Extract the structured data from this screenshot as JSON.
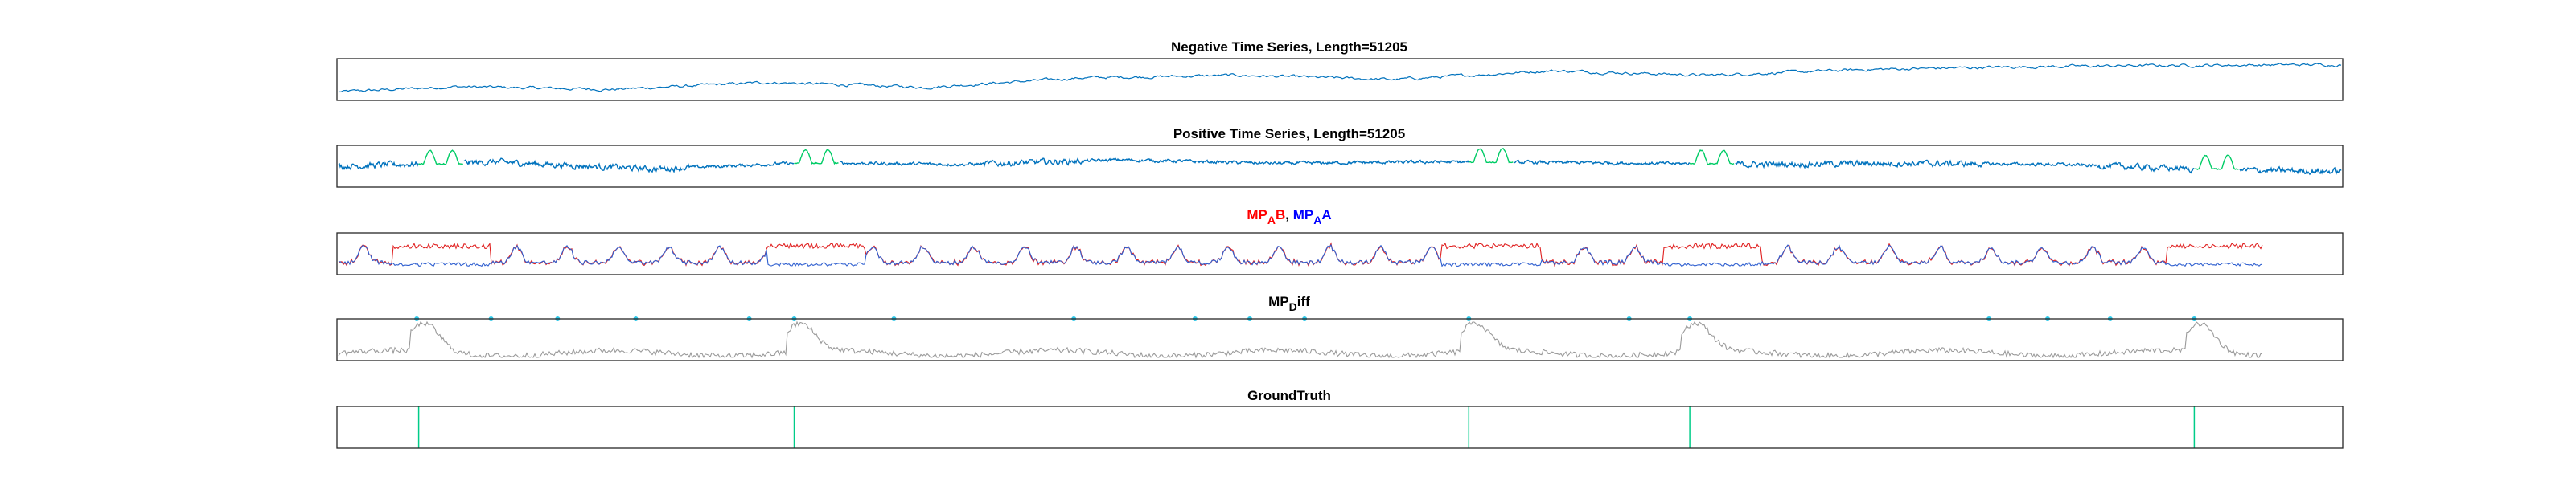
{
  "chart_data": [
    {
      "type": "line",
      "title": "Negative Time Series, Length=51205",
      "x_range": [
        1,
        51205
      ],
      "series": [
        {
          "color": "#0072bd",
          "x": [
            1,
            3000,
            7000,
            11000,
            15000,
            19000,
            23000,
            27000,
            31000,
            35000,
            39000,
            43000,
            47000,
            51205
          ],
          "values": [
            0.15,
            0.3,
            0.22,
            0.42,
            0.28,
            0.55,
            0.62,
            0.5,
            0.75,
            0.62,
            0.78,
            0.86,
            0.9,
            0.92
          ]
        }
      ]
    },
    {
      "type": "line",
      "title": "Positive Time Series, Length=51205",
      "x_range": [
        1,
        51205
      ],
      "series": [
        {
          "color": "#0072bd",
          "x": [
            1,
            4000,
            8000,
            12000,
            16000,
            20000,
            24000,
            28000,
            32000,
            36000,
            40000,
            44000,
            48000,
            51205
          ],
          "values": [
            0.5,
            0.62,
            0.42,
            0.6,
            0.55,
            0.68,
            0.58,
            0.62,
            0.6,
            0.55,
            0.58,
            0.55,
            0.4,
            0.35
          ]
        },
        {
          "color": "#00cc66",
          "segments": [
            [
              2050,
              3200
            ],
            [
              11650,
              12800
            ],
            [
              28900,
              30050
            ],
            [
              34550,
              35700
            ],
            [
              47450,
              48600
            ]
          ]
        }
      ]
    },
    {
      "type": "line",
      "title_parts": [
        {
          "text": "MP",
          "color": "#ff0000"
        },
        {
          "text": "A",
          "color": "#ff0000",
          "sub": true
        },
        {
          "text": "B",
          "color": "#ff0000"
        },
        {
          "text": ", ",
          "color": "#000000"
        },
        {
          "text": "MP",
          "color": "#0000ff"
        },
        {
          "text": "A",
          "color": "#0000ff",
          "sub": true
        },
        {
          "text": "A",
          "color": "#0000ff"
        }
      ],
      "x_range": [
        1,
        51205
      ],
      "series": [
        {
          "color": "#e02020",
          "kind": "MP_AB"
        },
        {
          "color": "#3060d0",
          "kind": "MP_AA"
        }
      ],
      "peak_regions": [
        [
          2050,
          3200
        ],
        [
          11650,
          12800
        ],
        [
          28900,
          30050
        ],
        [
          34550,
          35700
        ],
        [
          47450,
          48600
        ]
      ]
    },
    {
      "type": "line",
      "title_parts": [
        {
          "text": "MP",
          "color": "#000000"
        },
        {
          "text": "D",
          "color": "#000000",
          "sub": true
        },
        {
          "text": "iff",
          "color": "#000000"
        }
      ],
      "x_range": [
        1,
        51205
      ],
      "series": [
        {
          "color": "#9a9a9a",
          "kind": "MP_diff"
        }
      ],
      "peaks": [
        2050,
        11650,
        28900,
        34550,
        47450
      ],
      "markers": {
        "color": "#2bc7e8",
        "x": [
          2000,
          3900,
          5600,
          7600,
          10500,
          11650,
          14200,
          18800,
          21900,
          23300,
          24700,
          28900,
          33000,
          34550,
          42200,
          43700,
          45300,
          47450
        ]
      }
    },
    {
      "type": "line",
      "title": "GroundTruth",
      "x_range": [
        1,
        51205
      ],
      "series": [
        {
          "color": "#00cc88",
          "kind": "impulses",
          "x": [
            2050,
            11650,
            28900,
            34550,
            47450
          ]
        }
      ]
    }
  ]
}
